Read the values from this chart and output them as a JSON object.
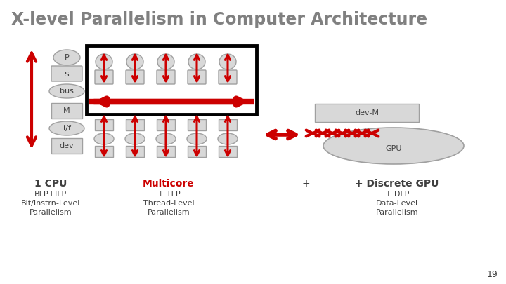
{
  "title": "X-level Parallelism in Computer Architecture",
  "title_color": "#808080",
  "background_color": "#ffffff",
  "red_color": "#cc0000",
  "dark_gray": "#404040",
  "light_gray": "#d8d8d8",
  "medium_gray": "#a0a0a0",
  "cpu_labels": [
    "P",
    "$",
    "bus",
    "M",
    "i/f",
    "dev"
  ],
  "label1_line1": "1 CPU",
  "label1_line2": "BLP+ILP",
  "label1_line3": "Bit/Instrn-Level",
  "label1_line4": "Parallelism",
  "label2_line1": "Multicore",
  "label2_line2": "+ TLP",
  "label2_line3": "Thread-Level",
  "label2_line4": "Parallelism",
  "label3_line1": "+ Discrete GPU",
  "label3_line2": "+ DLP",
  "label3_line3": "Data-Level",
  "label3_line4": "Parallelism",
  "page_num": "19",
  "title_fontsize": 17,
  "label_fontsize_large": 10,
  "label_fontsize_small": 8
}
